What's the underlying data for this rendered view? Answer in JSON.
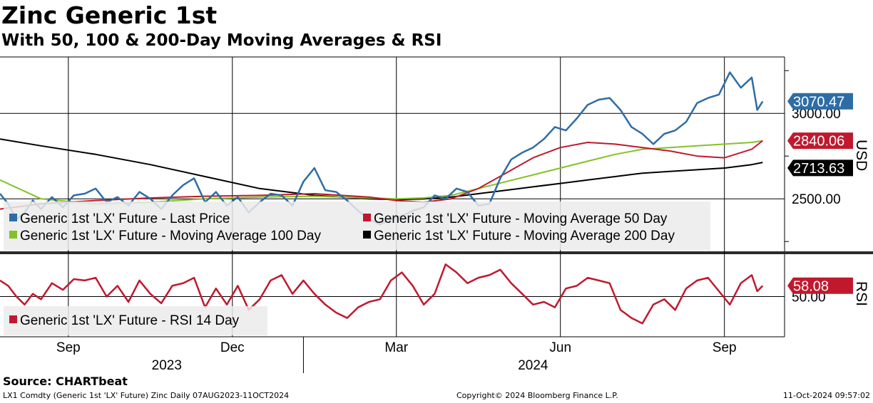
{
  "title": "Zinc Generic 1st",
  "subtitle": "With 50, 100 & 200-Day Moving Averages & RSI",
  "source": "Source:  CHARTbeat",
  "footer": {
    "left": "LX1 Comdty (Generic 1st 'LX' Future) Zinc  Daily 07AUG2023-11OCT2024",
    "center": "Copyright© 2024 Bloomberg Finance L.P.",
    "right": "11-Oct-2024 09:57:02"
  },
  "colors": {
    "price": "#2e6da4",
    "ma50": "#c0192e",
    "ma100": "#84c225",
    "ma200": "#000000",
    "rsi": "#c0192e"
  },
  "chart_data": [
    {
      "type": "line",
      "panel": "price",
      "ylabel": "USD",
      "ylim": [
        2180,
        3330
      ],
      "y_ticks": [
        2500,
        3000
      ],
      "y_tick_labels": [
        "2500.00",
        "3000.00"
      ],
      "x_ticks": [
        "Sep",
        "Dec",
        "Mar",
        "Jun",
        "Sep"
      ],
      "x_tick_pos": [
        0.5,
        3.5,
        6.5,
        9.5,
        12.5
      ],
      "year_labels": [
        {
          "label": "2023",
          "pos": 2.3
        },
        {
          "label": "2024",
          "pos": 9.0
        }
      ],
      "year_divider": 4.8,
      "xlim": [
        -0.75,
        13.6
      ],
      "legend": [
        "Generic 1st 'LX' Future - Last Price",
        "Generic 1st 'LX' Future - Moving Average 50 Day",
        "Generic 1st 'LX' Future - Moving Average 100 Day",
        "Generic 1st 'LX' Future - Moving Average 200 Day"
      ],
      "last_value_labels": [
        {
          "series": "Last Price",
          "label": "3070.47",
          "value": 3070.47
        },
        {
          "series": "MA 50",
          "label": "2840.06",
          "value": 2840.06
        },
        {
          "series": "MA 200",
          "label": "2713.63",
          "value": 2713.63
        }
      ],
      "series": [
        {
          "name": "Generic 1st 'LX' Future - Last Price",
          "x": [
            -0.75,
            -0.6,
            -0.45,
            -0.3,
            -0.15,
            0,
            0.2,
            0.4,
            0.6,
            0.8,
            1,
            1.2,
            1.4,
            1.6,
            1.8,
            2,
            2.2,
            2.4,
            2.6,
            2.8,
            3,
            3.2,
            3.4,
            3.6,
            3.8,
            4,
            4.2,
            4.4,
            4.6,
            4.8,
            5,
            5.2,
            5.4,
            5.6,
            5.8,
            6,
            6.2,
            6.4,
            6.6,
            6.8,
            7,
            7.2,
            7.4,
            7.6,
            7.8,
            8,
            8.2,
            8.4,
            8.6,
            8.8,
            9,
            9.2,
            9.4,
            9.6,
            9.8,
            10,
            10.2,
            10.4,
            10.6,
            10.8,
            11,
            11.2,
            11.4,
            11.6,
            11.8,
            12,
            12.2,
            12.4,
            12.6,
            12.8,
            13,
            13.1,
            13.2
          ],
          "values": [
            2530,
            2470,
            2380,
            2420,
            2490,
            2440,
            2510,
            2450,
            2520,
            2530,
            2560,
            2480,
            2510,
            2460,
            2540,
            2500,
            2440,
            2520,
            2580,
            2620,
            2480,
            2540,
            2460,
            2510,
            2420,
            2480,
            2530,
            2520,
            2460,
            2600,
            2680,
            2550,
            2540,
            2490,
            2430,
            2380,
            2350,
            2380,
            2400,
            2430,
            2450,
            2520,
            2500,
            2560,
            2540,
            2460,
            2470,
            2620,
            2730,
            2770,
            2800,
            2850,
            2920,
            2900,
            2970,
            3050,
            3080,
            3090,
            3020,
            2920,
            2880,
            2820,
            2880,
            2900,
            2950,
            3060,
            3090,
            3110,
            3240,
            3150,
            3210,
            3020,
            3070
          ]
        },
        {
          "name": "Generic 1st 'LX' Future - Moving Average 50 Day",
          "x": [
            -0.75,
            0,
            1,
            2,
            3,
            4,
            5,
            6,
            6.5,
            7,
            7.5,
            8,
            8.5,
            9,
            9.5,
            10,
            10.5,
            11,
            11.5,
            12,
            12.5,
            13,
            13.2
          ],
          "values": [
            2440,
            2470,
            2490,
            2505,
            2515,
            2520,
            2530,
            2510,
            2490,
            2480,
            2500,
            2560,
            2650,
            2740,
            2800,
            2830,
            2820,
            2800,
            2780,
            2750,
            2740,
            2790,
            2840
          ]
        },
        {
          "name": "Generic 1st 'LX' Future - Moving Average 100 Day",
          "x": [
            -0.75,
            0,
            1,
            2,
            3,
            4,
            5,
            6,
            6.5,
            7,
            7.5,
            8,
            8.5,
            9,
            9.5,
            10,
            10.5,
            11,
            11.5,
            12,
            12.5,
            13,
            13.2
          ],
          "values": [
            2610,
            2500,
            2470,
            2480,
            2500,
            2510,
            2515,
            2505,
            2500,
            2505,
            2520,
            2560,
            2600,
            2640,
            2680,
            2720,
            2760,
            2790,
            2800,
            2810,
            2820,
            2830,
            2840
          ]
        },
        {
          "name": "Generic 1st 'LX' Future - Moving Average 200 Day",
          "x": [
            -0.75,
            0,
            1,
            2,
            3,
            4,
            5,
            6,
            6.5,
            7,
            7.5,
            8,
            8.5,
            9,
            9.5,
            10,
            10.5,
            11,
            11.5,
            12,
            12.5,
            13,
            13.2
          ],
          "values": [
            2850,
            2810,
            2760,
            2700,
            2630,
            2560,
            2520,
            2500,
            2495,
            2500,
            2510,
            2530,
            2550,
            2570,
            2590,
            2610,
            2630,
            2650,
            2660,
            2670,
            2680,
            2700,
            2713
          ]
        }
      ]
    },
    {
      "type": "line",
      "panel": "rsi",
      "ylabel": "RSI",
      "ylim": [
        20,
        80
      ],
      "y_ticks": [
        50
      ],
      "y_tick_labels": [
        "50.00"
      ],
      "legend": [
        "Generic 1st 'LX' Future - RSI 14 Day"
      ],
      "last_value_labels": [
        {
          "series": "RSI 14 Day",
          "label": "58.08",
          "value": 58.08
        }
      ],
      "series": [
        {
          "name": "Generic 1st 'LX' Future - RSI 14 Day",
          "x": [
            -0.75,
            -0.6,
            -0.45,
            -0.3,
            -0.15,
            0,
            0.2,
            0.4,
            0.6,
            0.8,
            1,
            1.2,
            1.4,
            1.6,
            1.8,
            2,
            2.2,
            2.4,
            2.6,
            2.8,
            3,
            3.2,
            3.4,
            3.6,
            3.8,
            4,
            4.2,
            4.4,
            4.6,
            4.8,
            5,
            5.2,
            5.4,
            5.6,
            5.8,
            6,
            6.2,
            6.4,
            6.6,
            6.8,
            7,
            7.2,
            7.4,
            7.6,
            7.8,
            8,
            8.2,
            8.4,
            8.6,
            8.8,
            9,
            9.2,
            9.4,
            9.6,
            9.8,
            10,
            10.2,
            10.4,
            10.6,
            10.8,
            11,
            11.2,
            11.4,
            11.6,
            11.8,
            12,
            12.2,
            12.4,
            12.6,
            12.8,
            13,
            13.1,
            13.2
          ],
          "values": [
            62,
            58,
            50,
            44,
            52,
            48,
            60,
            55,
            63,
            62,
            64,
            50,
            58,
            46,
            62,
            52,
            45,
            58,
            60,
            64,
            42,
            56,
            44,
            58,
            40,
            48,
            62,
            66,
            52,
            62,
            52,
            44,
            38,
            34,
            42,
            46,
            48,
            62,
            68,
            58,
            44,
            52,
            74,
            68,
            60,
            64,
            66,
            70,
            60,
            52,
            44,
            46,
            42,
            56,
            58,
            64,
            62,
            60,
            40,
            34,
            30,
            44,
            48,
            40,
            56,
            62,
            64,
            54,
            44,
            60,
            66,
            54,
            58
          ]
        }
      ]
    }
  ]
}
